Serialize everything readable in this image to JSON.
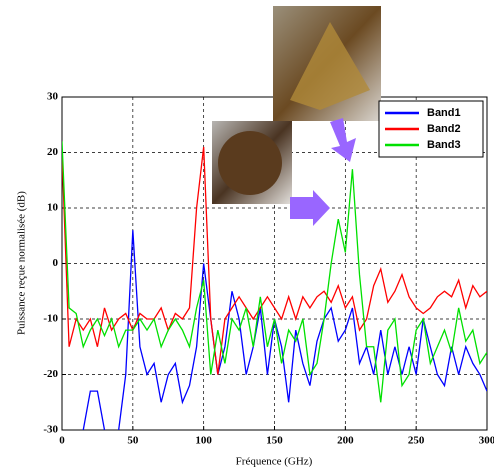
{
  "chart_data": {
    "type": "line",
    "x_label": "Fréquence (GHz)",
    "y_label": "Puissance reçue normalisée (dB)",
    "x": [
      0,
      5,
      10,
      15,
      20,
      25,
      30,
      35,
      40,
      45,
      50,
      55,
      60,
      65,
      70,
      75,
      80,
      85,
      90,
      95,
      100,
      105,
      110,
      115,
      120,
      125,
      130,
      135,
      140,
      145,
      150,
      155,
      160,
      165,
      170,
      175,
      180,
      185,
      190,
      195,
      200,
      205,
      210,
      215,
      220,
      225,
      230,
      235,
      240,
      245,
      250,
      255,
      260,
      265,
      270,
      275,
      280,
      285,
      290,
      295,
      300
    ],
    "series": [
      {
        "name": "Band1",
        "color": "#0000ff",
        "values": [
          -32,
          -32,
          -32,
          -30,
          -23,
          -23,
          -30,
          -32,
          -30,
          -20,
          6,
          -15,
          -20,
          -18,
          -25,
          -20,
          -18,
          -25,
          -22,
          -15,
          0,
          -10,
          -20,
          -15,
          -5,
          -10,
          -20,
          -15,
          -8,
          -20,
          -10,
          -15,
          -25,
          -12,
          -18,
          -22,
          -14,
          -10,
          -8,
          -14,
          -12,
          -8,
          -18,
          -15,
          -20,
          -12,
          -20,
          -15,
          -20,
          -15,
          -20,
          -10,
          -15,
          -20,
          -22,
          -15,
          -20,
          -15,
          -18,
          -20,
          -23
        ]
      },
      {
        "name": "Band2",
        "color": "#ff0000",
        "values": [
          20,
          -15,
          -10,
          -12,
          -10,
          -15,
          -8,
          -12,
          -10,
          -9,
          -12,
          -9,
          -10,
          -10,
          -8,
          -12,
          -9,
          -10,
          -8,
          10,
          21,
          -10,
          -20,
          -10,
          -8,
          -6,
          -8,
          -10,
          -8,
          -6,
          -8,
          -10,
          -6,
          -10,
          -6,
          -8,
          -6,
          -5,
          -7,
          -4,
          -8,
          -6,
          -12,
          -10,
          -4,
          -1,
          -7,
          -5,
          -2,
          -6,
          -8,
          -9,
          -8,
          -6,
          -5,
          -6,
          -3,
          -8,
          -4,
          -6,
          -5
        ]
      },
      {
        "name": "Band3",
        "color": "#00e000",
        "values": [
          22,
          -8,
          -9,
          -15,
          -12,
          -10,
          -13,
          -10,
          -15,
          -12,
          -12,
          -10,
          -12,
          -10,
          -15,
          -12,
          -10,
          -12,
          -15,
          -8,
          -3,
          -20,
          -12,
          -18,
          -10,
          -12,
          -8,
          -15,
          -6,
          -15,
          -10,
          -18,
          -12,
          -14,
          -10,
          -20,
          -18,
          -10,
          0,
          8,
          2,
          17,
          -2,
          -15,
          -15,
          -25,
          -12,
          -10,
          -22,
          -20,
          -12,
          -10,
          -18,
          -15,
          -12,
          -16,
          -8,
          -14,
          -12,
          -18,
          -16
        ]
      }
    ],
    "xlim": [
      0,
      300
    ],
    "xticks": [
      0,
      50,
      100,
      150,
      200,
      250,
      300
    ],
    "ylim": [
      -30,
      30
    ],
    "yticks": [
      -30,
      -20,
      -10,
      0,
      10,
      20,
      30
    ],
    "grid": true,
    "legend": "upper right"
  }
}
